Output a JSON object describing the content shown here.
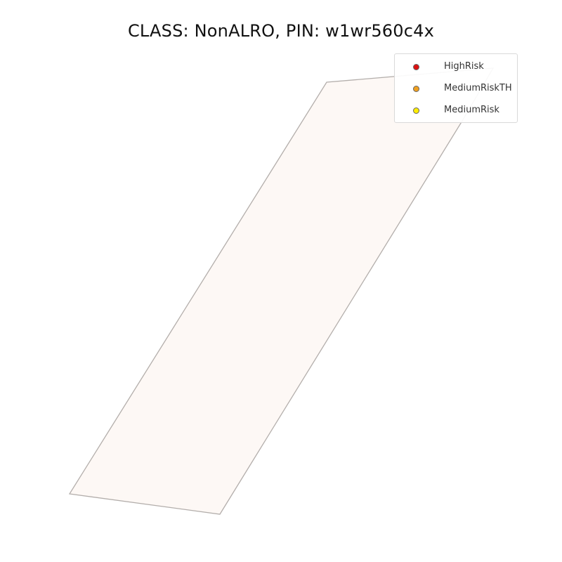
{
  "map": {
    "title": "CLASS: NonALRO, PIN: w1wr560c4x",
    "parcel": {
      "fill": "#fdf8f5",
      "stroke": "#b3aeab"
    },
    "legend": {
      "items": [
        {
          "label": "HighRisk",
          "color": "#dd1111",
          "icon": "circle-marker"
        },
        {
          "label": "MediumRiskTH",
          "color": "#f0a020",
          "icon": "circle-marker"
        },
        {
          "label": "MediumRisk",
          "color": "#ffee00",
          "icon": "circle-marker"
        }
      ]
    }
  }
}
